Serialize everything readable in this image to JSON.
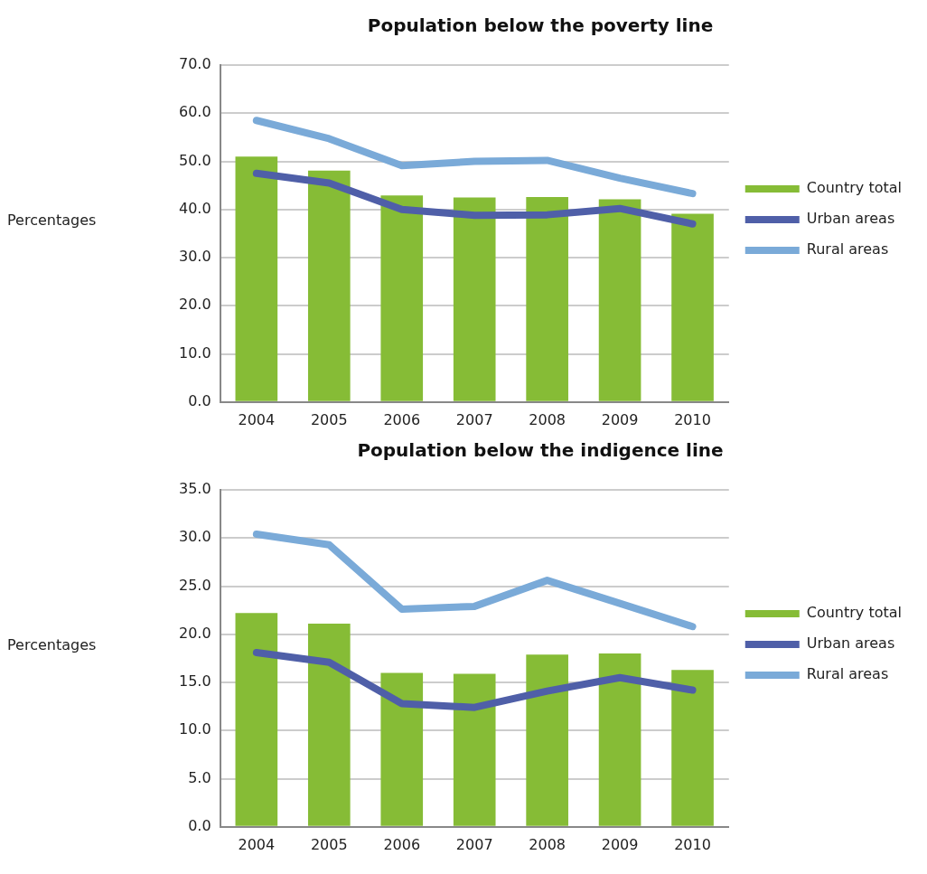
{
  "chart_data": [
    {
      "type": "bar",
      "title": "Population below the poverty line",
      "ylabel": "Percentages",
      "categories": [
        "2004",
        "2005",
        "2006",
        "2007",
        "2008",
        "2009",
        "2010"
      ],
      "series": [
        {
          "name": "Country total",
          "color": "#86bc36",
          "values": [
            51.0,
            48.1,
            42.9,
            42.5,
            42.6,
            42.1,
            39.1
          ]
        },
        {
          "name": "Urban areas",
          "type": "line",
          "color": "#4f5fa8",
          "values": [
            47.5,
            45.5,
            40.0,
            38.8,
            38.9,
            40.2,
            37.0
          ]
        },
        {
          "name": "Rural areas",
          "type": "line",
          "color": "#7aaad8",
          "values": [
            58.5,
            54.7,
            49.1,
            50.0,
            50.2,
            46.5,
            43.3
          ]
        }
      ],
      "ylim": [
        0,
        70
      ],
      "yticks": [
        {
          "value": 0,
          "label": "0.0"
        },
        {
          "value": 10,
          "label": "10.0"
        },
        {
          "value": 20,
          "label": "20.0"
        },
        {
          "value": 30,
          "label": "30.0"
        },
        {
          "value": 40,
          "label": "40.0"
        },
        {
          "value": 50,
          "label": "50.0"
        },
        {
          "value": 60,
          "label": "60.0"
        },
        {
          "value": 70,
          "label": "70.0"
        }
      ],
      "grid": "y",
      "legend": "right",
      "marker": "none",
      "line_style": "solid"
    },
    {
      "type": "bar",
      "title": "Population below the indigence line",
      "ylabel": "Percentages",
      "categories": [
        "2004",
        "2005",
        "2006",
        "2007",
        "2008",
        "2009",
        "2010"
      ],
      "series": [
        {
          "name": "Country total",
          "color": "#86bc36",
          "values": [
            22.2,
            21.1,
            16.0,
            15.9,
            17.9,
            18.0,
            16.3
          ]
        },
        {
          "name": "Urban areas",
          "type": "line",
          "color": "#4f5fa8",
          "values": [
            18.1,
            17.1,
            12.8,
            12.4,
            14.1,
            15.5,
            14.2
          ]
        },
        {
          "name": "Rural areas",
          "type": "line",
          "color": "#7aaad8",
          "values": [
            30.4,
            29.3,
            22.6,
            22.9,
            25.6,
            23.2,
            20.8
          ]
        }
      ],
      "ylim": [
        0,
        35
      ],
      "yticks": [
        {
          "value": 0,
          "label": "0.0"
        },
        {
          "value": 5,
          "label": "5.0"
        },
        {
          "value": 10,
          "label": "10.0"
        },
        {
          "value": 15,
          "label": "15.0"
        },
        {
          "value": 20,
          "label": "20.0"
        },
        {
          "value": 25,
          "label": "25.0"
        },
        {
          "value": 30,
          "label": "30.0"
        },
        {
          "value": 35,
          "label": "35.0"
        }
      ],
      "grid": "y",
      "legend": "right",
      "marker": "none",
      "line_style": "solid"
    }
  ]
}
